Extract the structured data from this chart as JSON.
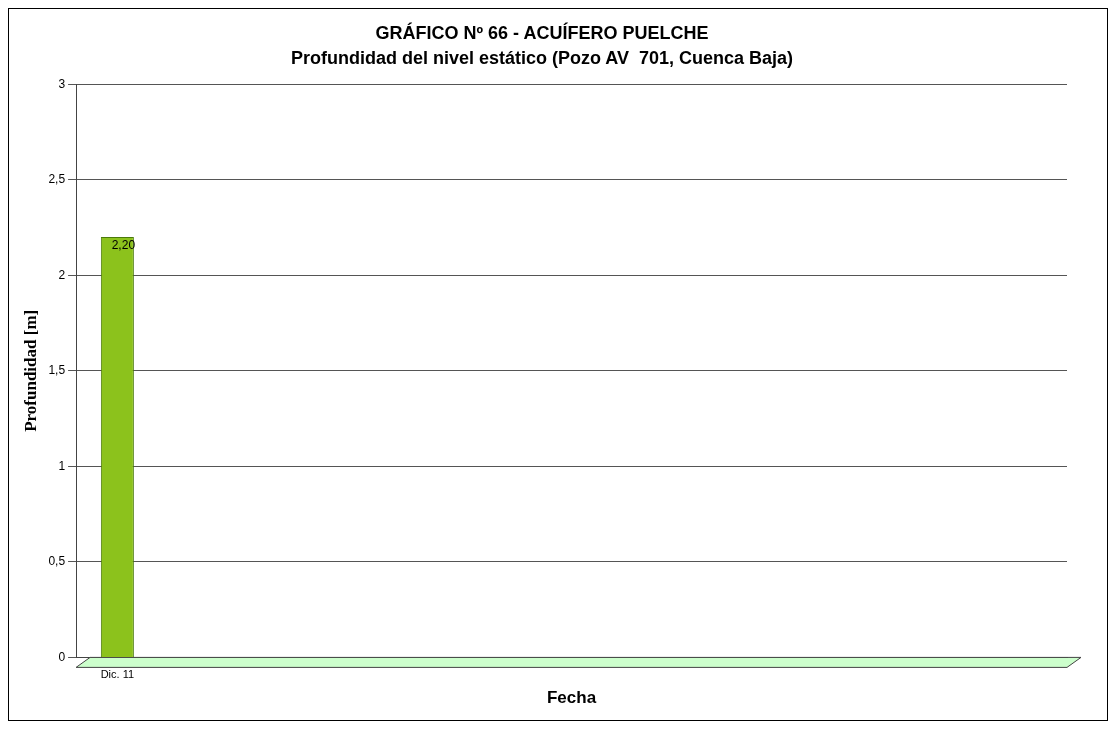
{
  "chart_data": {
    "type": "bar",
    "title": "GRÁFICO Nº 66 - ACUÍFERO PUELCHE",
    "subtitle": "Profundidad del nivel estático (Pozo AV  701, Cuenca Baja)",
    "xlabel": "Fecha",
    "ylabel": "Profundidad [m]",
    "categories": [
      "Dic. 11",
      null,
      null,
      null,
      null,
      null,
      null,
      null,
      null,
      null,
      null,
      null
    ],
    "values": [
      2.2,
      null,
      null,
      null,
      null,
      null,
      null,
      null,
      null,
      null,
      null,
      null
    ],
    "value_labels": [
      "2,20",
      null,
      null,
      null,
      null,
      null,
      null,
      null,
      null,
      null,
      null,
      null
    ],
    "color": "#8cc21c",
    "ylim": [
      0,
      3
    ],
    "yticks": [
      0,
      {
        "value": 0.5,
        "label": "0,5"
      },
      1,
      {
        "value": 1.5,
        "label": "1,5"
      },
      2,
      {
        "value": 2.5,
        "label": "2,5"
      },
      3
    ],
    "grid": "y",
    "legend": false
  }
}
